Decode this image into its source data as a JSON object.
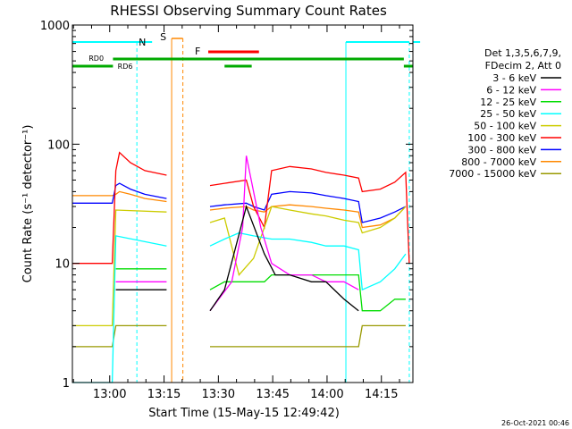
{
  "chart_data": {
    "type": "line",
    "title": "RHESSI Observing Summary Count Rates",
    "xlabel": "Start Time (15-May-15 12:49:42)",
    "ylabel": "Count Rate (s⁻¹ detector⁻¹)",
    "y_scale": "log",
    "ylim": [
      1,
      1000
    ],
    "x_unit": "minutes after 12:49:42",
    "xlim": [
      0,
      94
    ],
    "x_ticks": [
      "13:00",
      "13:15",
      "13:30",
      "13:45",
      "14:00",
      "14:15"
    ],
    "y_ticks": [
      "1",
      "10",
      "100",
      "1000"
    ],
    "grid": false,
    "legend_position": "right",
    "legend_header": [
      "Det 1,3,5,6,7,9,",
      "FDecim 2, Att 0"
    ],
    "timestamp": "26-Oct-2021 00:46",
    "series": [
      {
        "name": "3 - 6 keV",
        "color": "#000000",
        "x": [
          0,
          11,
          12,
          26,
          28,
          38,
          42,
          48,
          53,
          56,
          60,
          66,
          70,
          75,
          79,
          80,
          85,
          89,
          92,
          94
        ],
        "values": [
          null,
          null,
          6,
          6,
          null,
          4,
          6,
          30,
          12,
          8,
          8,
          7,
          7,
          5,
          4,
          null,
          null,
          null,
          null,
          null
        ]
      },
      {
        "name": "6 - 12 keV",
        "color": "#ff00ff",
        "x": [
          0,
          11,
          12,
          26,
          28,
          38,
          44,
          47,
          48,
          50,
          52,
          55,
          60,
          66,
          70,
          75,
          79,
          80,
          90,
          92,
          94
        ],
        "values": [
          null,
          null,
          7,
          7,
          null,
          4,
          7,
          20,
          80,
          40,
          20,
          10,
          8,
          8,
          7,
          7,
          6,
          null,
          null,
          null,
          null
        ]
      },
      {
        "name": "12 - 25 keV",
        "color": "#00dd00",
        "x": [
          0,
          11,
          12,
          26,
          28,
          38,
          42,
          48,
          53,
          55,
          60,
          66,
          70,
          75,
          79,
          80,
          85,
          89,
          92,
          94
        ],
        "values": [
          null,
          null,
          9,
          9,
          null,
          6,
          7,
          7,
          7,
          8,
          8,
          8,
          8,
          8,
          8,
          4,
          4,
          5,
          5,
          null
        ]
      },
      {
        "name": "25 - 50 keV",
        "color": "#00ffff",
        "x": [
          0,
          11,
          12,
          26,
          28,
          38,
          42,
          46,
          50,
          55,
          60,
          66,
          70,
          75,
          79,
          80,
          85,
          89,
          92,
          94
        ],
        "values": [
          1,
          1,
          17,
          14,
          null,
          14,
          16,
          18,
          17,
          16,
          16,
          15,
          14,
          14,
          13,
          6,
          7,
          9,
          12,
          null
        ]
      },
      {
        "name": "50 - 100 keV",
        "color": "#cccc00",
        "x": [
          0,
          11,
          12,
          26,
          28,
          38,
          42,
          46,
          50,
          55,
          60,
          66,
          70,
          75,
          79,
          80,
          85,
          89,
          92,
          94
        ],
        "values": [
          3,
          3,
          28,
          27,
          null,
          22,
          24,
          8,
          11,
          30,
          28,
          26,
          25,
          23,
          22,
          18,
          20,
          24,
          30,
          null
        ]
      },
      {
        "name": "100 - 300 keV",
        "color": "#ff0000",
        "x": [
          0,
          11,
          12,
          13,
          16,
          20,
          26,
          28,
          38,
          42,
          48,
          50,
          53,
          55,
          60,
          66,
          70,
          75,
          79,
          80,
          85,
          89,
          92,
          93,
          94
        ],
        "values": [
          10,
          10,
          60,
          85,
          70,
          60,
          55,
          null,
          45,
          47,
          50,
          30,
          20,
          60,
          65,
          62,
          58,
          55,
          52,
          40,
          42,
          48,
          58,
          10,
          null
        ]
      },
      {
        "name": "300 - 800 keV",
        "color": "#0000ff",
        "x": [
          0,
          11,
          12,
          13,
          16,
          20,
          26,
          28,
          38,
          42,
          48,
          50,
          53,
          55,
          60,
          66,
          70,
          75,
          79,
          80,
          85,
          89,
          92,
          94
        ],
        "values": [
          32,
          32,
          45,
          47,
          42,
          38,
          35,
          null,
          30,
          31,
          32,
          30,
          28,
          38,
          40,
          39,
          37,
          35,
          33,
          22,
          24,
          27,
          30,
          null
        ]
      },
      {
        "name": "800 - 7000 keV",
        "color": "#ff8800",
        "x": [
          0,
          11,
          12,
          13,
          16,
          20,
          26,
          28,
          38,
          42,
          48,
          50,
          53,
          55,
          60,
          66,
          70,
          75,
          79,
          80,
          85,
          89,
          92,
          94
        ],
        "values": [
          37,
          37,
          38,
          40,
          38,
          35,
          33,
          null,
          28,
          29,
          30,
          28,
          27,
          30,
          31,
          30,
          29,
          28,
          27,
          20,
          21,
          24,
          30,
          null
        ]
      },
      {
        "name": "7000 - 15000 keV",
        "color": "#999900",
        "x": [
          0,
          11,
          12,
          26,
          28,
          38,
          46,
          60,
          79,
          80,
          92,
          94
        ],
        "values": [
          2,
          2,
          3,
          3,
          null,
          2,
          2,
          2,
          2,
          3,
          3,
          null
        ]
      }
    ],
    "annotations": [
      {
        "label": "N",
        "color": "#00ffff"
      },
      {
        "label": "S",
        "color": "#ff8800"
      },
      {
        "label": "F",
        "color": "#ff0000"
      },
      {
        "label": "RD0",
        "color": "#00aa00"
      },
      {
        "label": "RD6",
        "color": "#00aa00"
      }
    ]
  }
}
